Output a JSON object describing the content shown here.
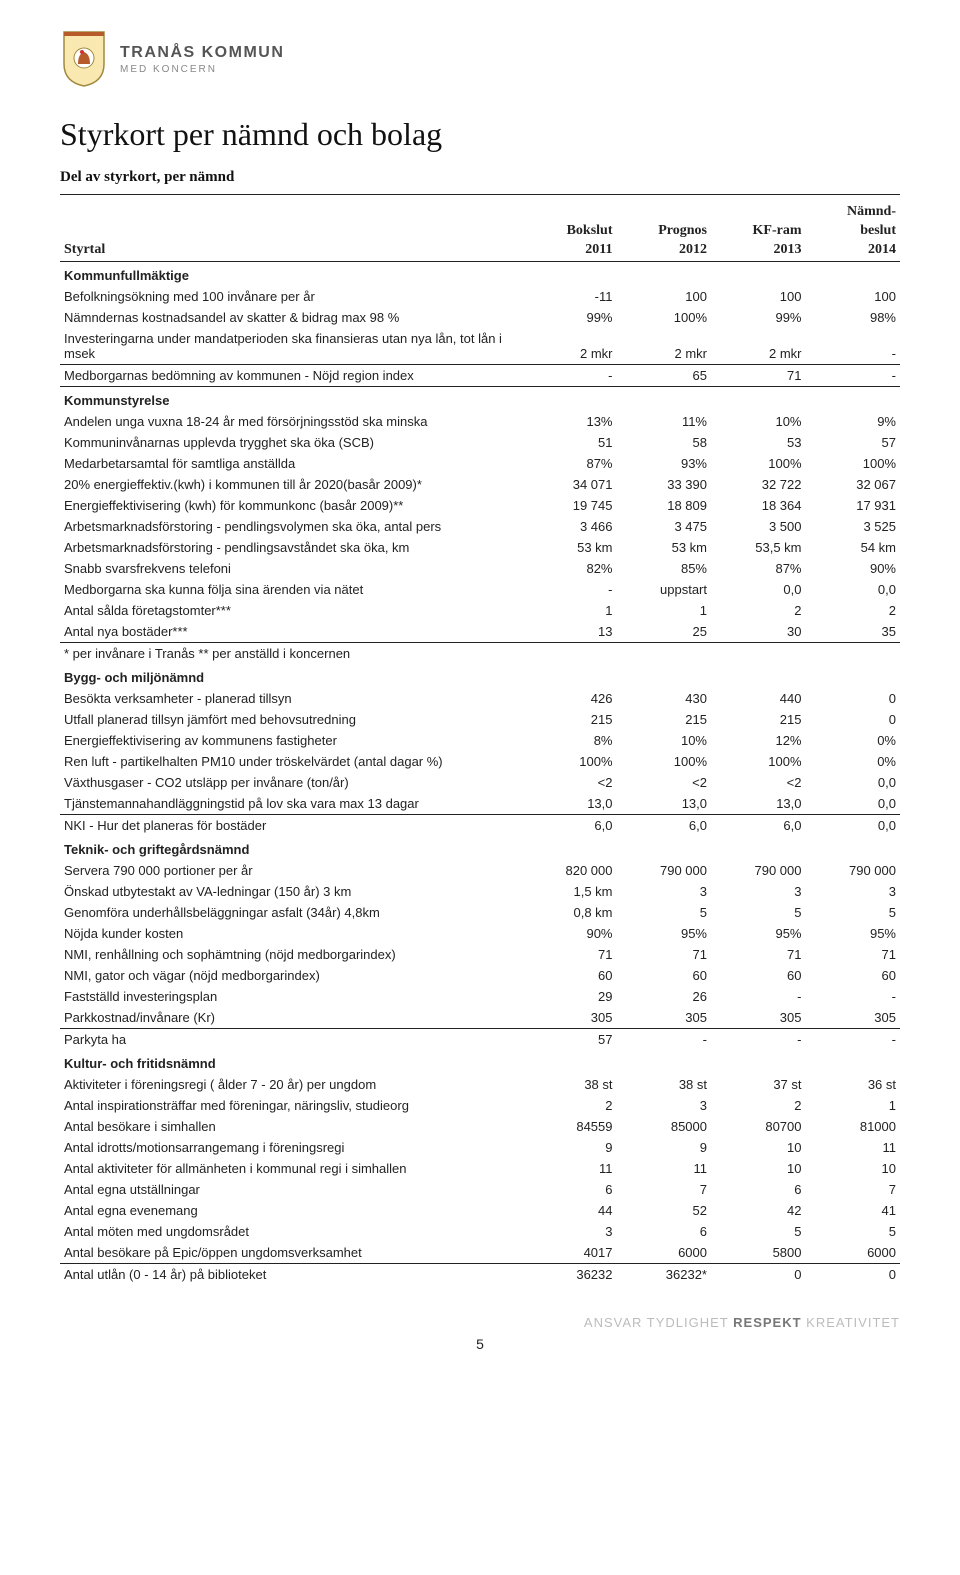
{
  "brand": {
    "main": "TRANÅS KOMMUN",
    "sub": "MED KONCERN"
  },
  "title": "Styrkort per nämnd och bolag",
  "subtitle": "Del av styrkort, per nämnd",
  "header": {
    "label": "Styrtal",
    "c1_top": "Bokslut",
    "c1_bot": "2011",
    "c2_top": "Prognos",
    "c2_bot": "2012",
    "c3_top": "KF-ram",
    "c3_bot": "2013",
    "c4_top": "Nämnd-",
    "c4_mid": "beslut",
    "c4_bot": "2014"
  },
  "sections": [
    {
      "name": "Kommunfullmäktige",
      "topline": false,
      "rows": [
        {
          "label": "Befolkningsökning med 100 invånare per år",
          "v": [
            "-11",
            "100",
            "100",
            "100"
          ]
        },
        {
          "label": "Nämndernas kostnadsandel av skatter & bidrag max 98 %",
          "v": [
            "99%",
            "100%",
            "99%",
            "98%"
          ]
        },
        {
          "label": "Investeringarna under mandatperioden ska finansieras utan nya lån, tot lån i msek",
          "v": [
            "2 mkr",
            "2 mkr",
            "2 mkr",
            "-"
          ]
        },
        {
          "label": "Medborgarnas bedömning av kommunen - Nöjd region index",
          "v": [
            "-",
            "65",
            "71",
            "-"
          ]
        }
      ]
    },
    {
      "name": "Kommunstyrelse",
      "topline": true,
      "rows": [
        {
          "label": "Andelen unga vuxna 18-24 år med försörjningsstöd ska minska",
          "v": [
            "13%",
            "11%",
            "10%",
            "9%"
          ]
        },
        {
          "label": "Kommuninvånarnas upplevda trygghet ska öka (SCB)",
          "v": [
            "51",
            "58",
            "53",
            "57"
          ]
        },
        {
          "label": "Medarbetarsamtal för samtliga anställda",
          "v": [
            "87%",
            "93%",
            "100%",
            "100%"
          ]
        },
        {
          "label": "20% energieffektiv.(kwh) i kommunen till år 2020(basår 2009)*",
          "v": [
            "34 071",
            "33 390",
            "32 722",
            "32 067"
          ]
        },
        {
          "label": "Energieffektivisering (kwh) för kommunkonc (basår 2009)**",
          "v": [
            "19 745",
            "18 809",
            "18 364",
            "17 931"
          ]
        },
        {
          "label": "Arbetsmarknadsförstoring - pendlingsvolymen ska öka, antal pers",
          "v": [
            "3 466",
            "3 475",
            "3 500",
            "3 525"
          ]
        },
        {
          "label": "Arbetsmarknadsförstoring - pendlingsavståndet ska öka, km",
          "v": [
            "53 km",
            "53 km",
            "53,5 km",
            "54 km"
          ]
        },
        {
          "label": "Snabb svarsfrekvens telefoni",
          "v": [
            "82%",
            "85%",
            "87%",
            "90%"
          ]
        },
        {
          "label": "Medborgarna ska kunna följa sina ärenden via nätet",
          "v": [
            "-",
            "uppstart",
            "0,0",
            "0,0"
          ]
        },
        {
          "label": "Antal sålda företagstomter***",
          "v": [
            "1",
            "1",
            "2",
            "2"
          ]
        },
        {
          "label": "Antal nya bostäder***",
          "v": [
            "13",
            "25",
            "30",
            "35"
          ]
        },
        {
          "label": "* per invånare i Tranås  ** per anställd i koncernen",
          "v": [
            "",
            "",
            "",
            ""
          ]
        }
      ]
    },
    {
      "name": "Bygg- och miljönämnd",
      "topline": false,
      "rows": [
        {
          "label": "Besökta verksamheter - planerad tillsyn",
          "v": [
            "426",
            "430",
            "440",
            "0"
          ]
        },
        {
          "label": "Utfall planerad tillsyn jämfört med behovsutredning",
          "v": [
            "215",
            "215",
            "215",
            "0"
          ]
        },
        {
          "label": "Energieffektivisering av kommunens fastigheter",
          "v": [
            "8%",
            "10%",
            "12%",
            "0%"
          ]
        },
        {
          "label": "Ren luft - partikelhalten PM10 under tröskelvärdet (antal dagar %)",
          "v": [
            "100%",
            "100%",
            "100%",
            "0%"
          ]
        },
        {
          "label": "Växthusgaser - CO2 utsläpp per invånare (ton/år)",
          "v": [
            "<2",
            "<2",
            "<2",
            "0,0"
          ]
        },
        {
          "label": "Tjänstemannahandläggningstid på lov ska vara max 13 dagar",
          "v": [
            "13,0",
            "13,0",
            "13,0",
            "0,0"
          ]
        },
        {
          "label": "NKI - Hur det planeras för bostäder",
          "v": [
            "6,0",
            "6,0",
            "6,0",
            "0,0"
          ]
        }
      ]
    },
    {
      "name": "Teknik- och griftegårdsnämnd",
      "topline": false,
      "rows": [
        {
          "label": "Servera 790 000 portioner per år",
          "v": [
            "820 000",
            "790 000",
            "790 000",
            "790 000"
          ]
        },
        {
          "label": "Önskad utbytestakt av VA-ledningar (150 år) 3 km",
          "v": [
            "1,5 km",
            "3",
            "3",
            "3"
          ]
        },
        {
          "label": "Genomföra underhållsbeläggningar asfalt (34år) 4,8km",
          "v": [
            "0,8 km",
            "5",
            "5",
            "5"
          ]
        },
        {
          "label": "Nöjda kunder kosten",
          "v": [
            "90%",
            "95%",
            "95%",
            "95%"
          ]
        },
        {
          "label": "NMI, renhållning och sophämtning (nöjd medborgarindex)",
          "v": [
            "71",
            "71",
            "71",
            "71"
          ]
        },
        {
          "label": "NMI, gator och vägar (nöjd medborgarindex)",
          "v": [
            "60",
            "60",
            "60",
            "60"
          ]
        },
        {
          "label": "Fastställd investeringsplan",
          "v": [
            "29",
            "26",
            "-",
            "-"
          ]
        },
        {
          "label": "Parkkostnad/invånare (Kr)",
          "v": [
            "305",
            "305",
            "305",
            "305"
          ]
        },
        {
          "label": "Parkyta ha",
          "v": [
            "57",
            "-",
            "-",
            "-"
          ]
        }
      ]
    },
    {
      "name": "Kultur- och fritidsnämnd",
      "topline": false,
      "rows": [
        {
          "label": "Aktiviteter i föreningsregi ( ålder 7 - 20 år) per ungdom",
          "v": [
            "38 st",
            "38 st",
            "37 st",
            "36 st"
          ]
        },
        {
          "label": "Antal inspirationsträffar med föreningar, näringsliv, studieorg",
          "v": [
            "2",
            "3",
            "2",
            "1"
          ]
        },
        {
          "label": "Antal besökare i simhallen",
          "v": [
            "84559",
            "85000",
            "80700",
            "81000"
          ]
        },
        {
          "label": "Antal idrotts/motionsarrangemang i föreningsregi",
          "v": [
            "9",
            "9",
            "10",
            "11"
          ]
        },
        {
          "label": "Antal aktiviteter för allmänheten i kommunal regi i simhallen",
          "v": [
            "11",
            "11",
            "10",
            "10"
          ]
        },
        {
          "label": "Antal egna utställningar",
          "v": [
            "6",
            "7",
            "6",
            "7"
          ]
        },
        {
          "label": "Antal egna evenemang",
          "v": [
            "44",
            "52",
            "42",
            "41"
          ]
        },
        {
          "label": "Antal möten med ungdomsrådet",
          "v": [
            "3",
            "6",
            "5",
            "5"
          ]
        },
        {
          "label": "Antal besökare på Epic/öppen ungdomsverksamhet",
          "v": [
            "4017",
            "6000",
            "5800",
            "6000"
          ]
        },
        {
          "label": "Antal utlån (0 - 14 år) på biblioteket",
          "v": [
            "36232",
            "36232*",
            "0",
            "0"
          ]
        }
      ]
    }
  ],
  "footer": {
    "w1": "ANSVAR",
    "w2": "TYDLIGHET",
    "w3": "RESPEKT",
    "w4": "KREATIVITET"
  },
  "page_num": "5"
}
